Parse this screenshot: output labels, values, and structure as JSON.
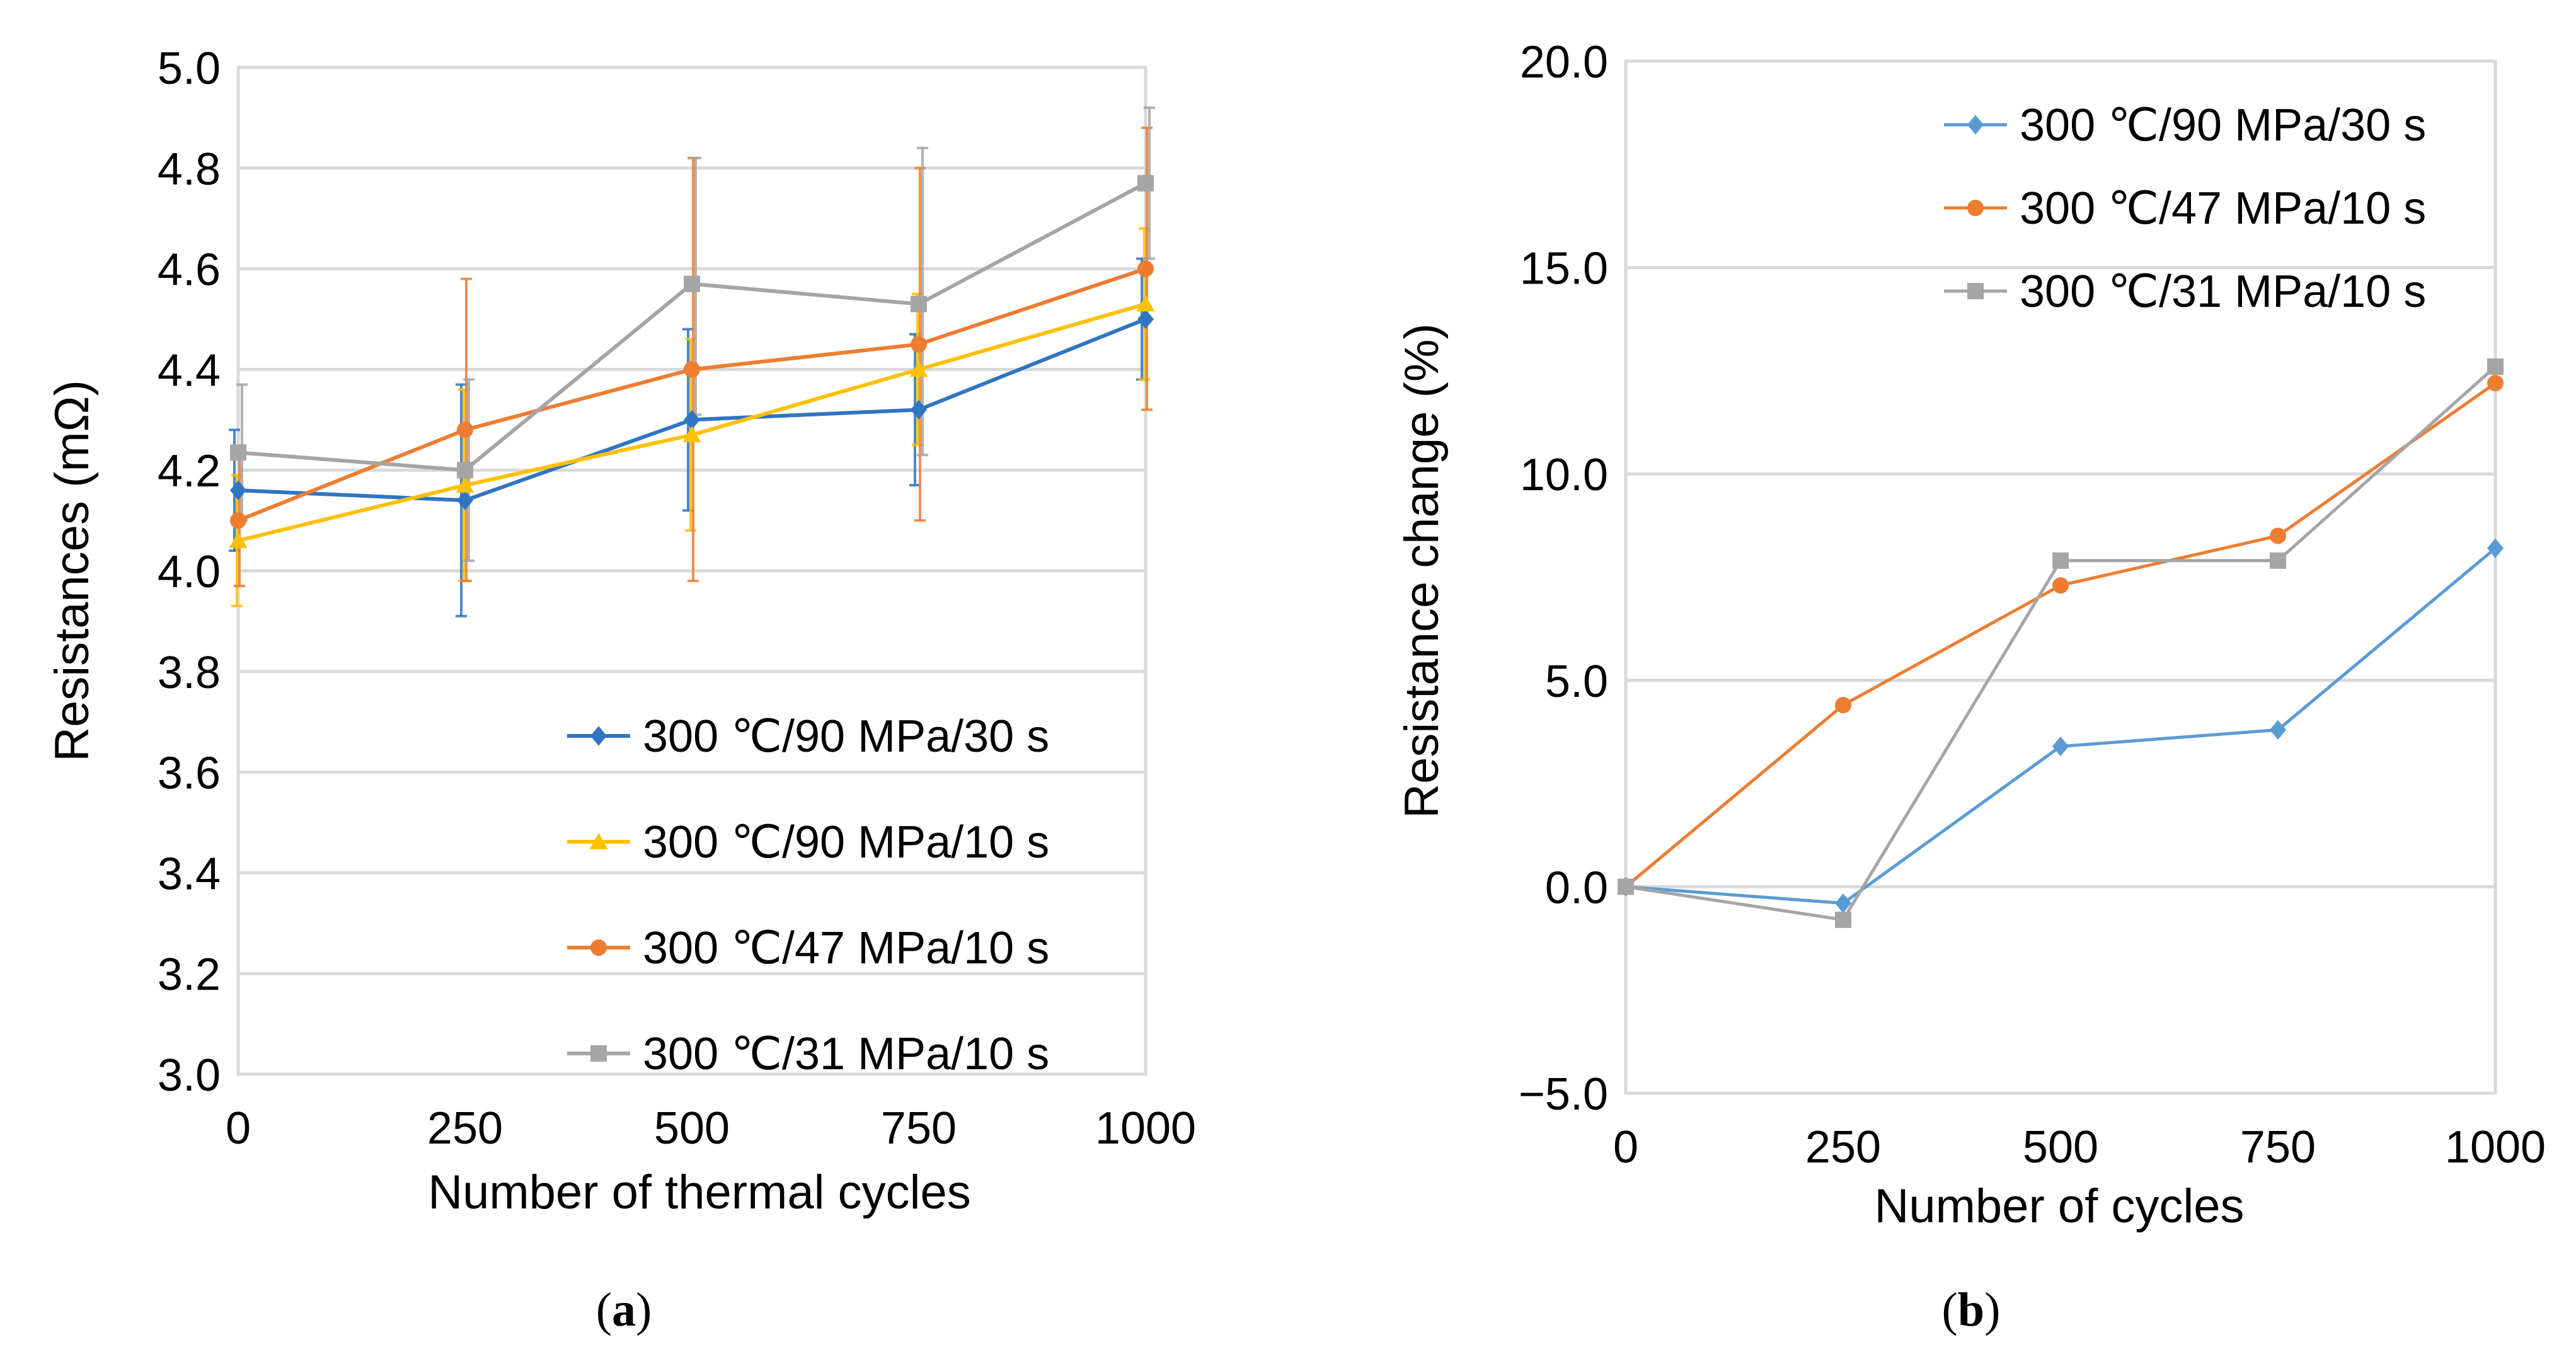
{
  "chart_data": [
    {
      "type": "line",
      "panel_label": "a",
      "title": "",
      "xlabel": "Number of thermal cycles",
      "ylabel": "Resistances (mΩ)",
      "x_ticks": [
        0,
        250,
        500,
        750,
        1000
      ],
      "y_ticks": [
        "3.0",
        "3.2",
        "3.4",
        "3.6",
        "3.8",
        "4.0",
        "4.2",
        "4.4",
        "4.6",
        "4.8",
        "5.0"
      ],
      "xlim": [
        0,
        1000
      ],
      "ylim": [
        3.0,
        5.0
      ],
      "grid": "horizontal",
      "legend_position": "bottom-right",
      "x": [
        0,
        250,
        500,
        750,
        1000
      ],
      "series": [
        {
          "name": "300 ℃/90 MPa/30 s",
          "marker": "diamond",
          "color": "#2f75c2",
          "values": [
            4.16,
            4.14,
            4.3,
            4.32,
            4.5
          ],
          "err_low": [
            4.04,
            3.91,
            4.12,
            4.17,
            4.38
          ],
          "err_high": [
            4.28,
            4.37,
            4.48,
            4.47,
            4.62
          ]
        },
        {
          "name": "300 ℃/90 MPa/10 s",
          "marker": "triangle",
          "color": "#ffc000",
          "values": [
            4.06,
            4.17,
            4.27,
            4.4,
            4.53
          ],
          "err_low": [
            3.93,
            3.98,
            4.08,
            4.25,
            4.38
          ],
          "err_high": [
            4.19,
            4.36,
            4.46,
            4.55,
            4.68
          ]
        },
        {
          "name": "300 ℃/47 MPa/10 s",
          "marker": "circle",
          "color": "#ed7d31",
          "values": [
            4.1,
            4.28,
            4.4,
            4.45,
            4.6
          ],
          "err_low": [
            3.97,
            3.98,
            3.98,
            4.1,
            4.32
          ],
          "err_high": [
            4.23,
            4.58,
            4.82,
            4.8,
            4.88
          ]
        },
        {
          "name": "300 ℃/31 MPa/10 s",
          "marker": "square",
          "color": "#a5a5a5",
          "values": [
            4.235,
            4.2,
            4.57,
            4.53,
            4.77
          ],
          "err_low": [
            4.1,
            4.02,
            4.31,
            4.23,
            4.62
          ],
          "err_high": [
            4.37,
            4.38,
            4.82,
            4.84,
            4.92
          ]
        }
      ]
    },
    {
      "type": "line",
      "panel_label": "b",
      "title": "",
      "xlabel": "Number of cycles",
      "ylabel": "Resistance change (%)",
      "x_ticks": [
        0,
        250,
        500,
        750,
        1000
      ],
      "y_ticks": [
        "−5.0",
        "0.0",
        "5.0",
        "10.0",
        "15.0",
        "20.0"
      ],
      "xlim": [
        0,
        1000
      ],
      "ylim": [
        -5.0,
        20.0
      ],
      "grid": "horizontal",
      "legend_position": "top-right",
      "x": [
        0,
        250,
        500,
        750,
        1000
      ],
      "series": [
        {
          "name": "300 ℃/90 MPa/30 s",
          "marker": "diamond",
          "color": "#5b9bd5",
          "values": [
            0.0,
            -0.4,
            3.4,
            3.8,
            8.2
          ]
        },
        {
          "name": "300 ℃/47 MPa/10 s",
          "marker": "circle",
          "color": "#ed7d31",
          "values": [
            0.0,
            4.4,
            7.3,
            8.5,
            12.2
          ]
        },
        {
          "name": "300 ℃/31 MPa/10 s",
          "marker": "square",
          "color": "#a5a5a5",
          "values": [
            0.0,
            -0.8,
            7.9,
            7.9,
            12.6
          ]
        }
      ]
    }
  ]
}
